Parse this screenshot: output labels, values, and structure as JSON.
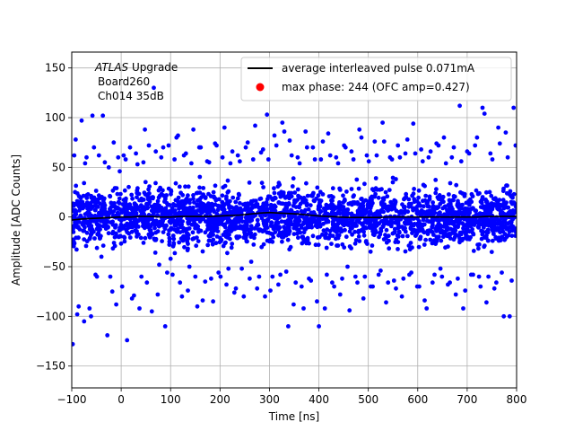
{
  "chart_data": {
    "type": "scatter",
    "title": "",
    "annotation": {
      "lines": [
        {
          "italic": "ATLAS",
          "rest": " Upgrade"
        },
        {
          "italic": "",
          "rest": "Board260"
        },
        {
          "italic": "",
          "rest": "Ch014 35dB"
        }
      ]
    },
    "xlabel": "Time [ns]",
    "ylabel": "Amplitude [ADC Counts]",
    "xlim": [
      -100,
      800
    ],
    "ylim": [
      -172,
      166
    ],
    "xticks": [
      -100,
      0,
      100,
      200,
      300,
      400,
      500,
      600,
      700,
      800
    ],
    "yticks": [
      -150,
      -100,
      -50,
      0,
      50,
      100,
      150
    ],
    "grid": true,
    "legend_position": "top-right",
    "series": [
      {
        "name": "average interleaved pulse 0.071mA",
        "kind": "line",
        "color": "#000000",
        "x": [
          -100,
          -80,
          -60,
          -40,
          -20,
          0,
          20,
          40,
          60,
          80,
          100,
          120,
          140,
          160,
          180,
          200,
          220,
          240,
          260,
          280,
          300,
          320,
          340,
          360,
          380,
          400,
          420,
          440,
          460,
          480,
          500,
          520,
          540,
          560,
          580,
          600,
          620,
          640,
          660,
          680,
          700,
          720,
          740,
          760,
          780,
          800
        ],
        "y": [
          -3,
          -2,
          -1.5,
          -1,
          -0.5,
          0,
          0,
          0.5,
          0.5,
          0,
          0,
          0.5,
          0.5,
          0.5,
          0.5,
          1,
          1.5,
          2,
          3,
          4,
          4.5,
          4,
          3.5,
          3,
          2,
          1,
          0.5,
          0,
          -0.5,
          -0.5,
          -0.5,
          -0.5,
          0,
          0,
          0,
          0,
          0,
          0,
          0,
          0,
          0,
          0,
          0.5,
          0.5,
          0.5,
          0.5
        ]
      },
      {
        "name": "max phase: 244 (OFC amp=0.427)",
        "kind": "scatter",
        "color": "#ff0000",
        "x": [],
        "y": []
      },
      {
        "name": "",
        "kind": "scatter",
        "color": "#0000ff",
        "x": [
          -98,
          -92,
          -89,
          -80,
          -75,
          -70,
          -61,
          -58,
          -52,
          -45,
          -40,
          -33,
          -28,
          -22,
          -15,
          -10,
          -3,
          5,
          12,
          18,
          26,
          33,
          41,
          48,
          56,
          62,
          70,
          77,
          85,
          93,
          100,
          108,
          115,
          123,
          131,
          138,
          146,
          154,
          161,
          170,
          178,
          186,
          193,
          201,
          209,
          217,
          225,
          232,
          240,
          248,
          256,
          263,
          271,
          279,
          287,
          295,
          302,
          310,
          318,
          326,
          334,
          341,
          349,
          357,
          365,
          373,
          380,
          388,
          396,
          404,
          412,
          419,
          427,
          435,
          443,
          451,
          458,
          466,
          474,
          482,
          490,
          497,
          505,
          513,
          521,
          529,
          536,
          544,
          552,
          560,
          568,
          575,
          583,
          591,
          599,
          607,
          614,
          622,
          630,
          638,
          646,
          653,
          661,
          669,
          677,
          685,
          692,
          700,
          708,
          716,
          724,
          731,
          739,
          747,
          755,
          763,
          770,
          778,
          786,
          794,
          -95,
          -86,
          -73,
          -64,
          -55,
          -49,
          -37,
          -25,
          -18,
          -6,
          2,
          9,
          22,
          30,
          37,
          45,
          52,
          66,
          74,
          81,
          89,
          96,
          104,
          112,
          119,
          127,
          135,
          142,
          150,
          158,
          165,
          174,
          182,
          190,
          197,
          205,
          213,
          221,
          229,
          236,
          244,
          252,
          260,
          267,
          275,
          283,
          291,
          298,
          306,
          314,
          322,
          330,
          338,
          345,
          353,
          361,
          369,
          376,
          384,
          392,
          400,
          408,
          416,
          423,
          431,
          439,
          447,
          454,
          462,
          470,
          478,
          486,
          493,
          501,
          509,
          517,
          525,
          532,
          540,
          548,
          556,
          564,
          571,
          579,
          587,
          595,
          603,
          610,
          618,
          626,
          634,
          642,
          649,
          657,
          665,
          673,
          681,
          688,
          696,
          704,
          712,
          720,
          727,
          735,
          743,
          751,
          759,
          766,
          774,
          782,
          790,
          798
        ],
        "y": [
          -128,
          78,
          -98,
          97,
          -105,
          60,
          -100,
          102,
          -58,
          62,
          -40,
          55,
          -119,
          -60,
          75,
          -88,
          46,
          62,
          -124,
          70,
          -79,
          53,
          -60,
          88,
          72,
          -95,
          66,
          -48,
          70,
          -56,
          -42,
          58,
          82,
          -80,
          64,
          -50,
          88,
          -90,
          70,
          -65,
          55,
          -85,
          72,
          -60,
          90,
          -52,
          66,
          -72,
          56,
          -80,
          75,
          -45,
          92,
          -60,
          68,
          103,
          -74,
          82,
          -68,
          95,
          -55,
          77,
          -88,
          60,
          -70,
          86,
          -62,
          70,
          -85,
          58,
          -92,
          84,
          -66,
          60,
          -78,
          72,
          -50,
          66,
          -60,
          88,
          -82,
          62,
          -70,
          76,
          -58,
          95,
          -86,
          60,
          -64,
          72,
          -80,
          64,
          -58,
          94,
          -70,
          68,
          -84,
          60,
          -66,
          74,
          -52,
          80,
          -68,
          60,
          -78,
          112,
          -92,
          66,
          -58,
          72,
          -60,
          110,
          -86,
          64,
          -72,
          90,
          -56,
          85,
          -100,
          110,
          62,
          -90,
          54,
          -92,
          70,
          -60,
          102,
          50,
          -75,
          60,
          -70,
          58,
          -82,
          64,
          -92,
          55,
          -66,
          130,
          -78,
          60,
          -110,
          72,
          -58,
          80,
          -66,
          62,
          -74,
          54,
          -60,
          70,
          -84,
          56,
          -62,
          74,
          -56,
          60,
          -68,
          54,
          -76,
          62,
          -52,
          70,
          -62,
          58,
          -72,
          65,
          -80,
          58,
          -60,
          72,
          -58,
          86,
          -110,
          62,
          -66,
          54,
          -92,
          70,
          -64,
          58,
          -110,
          76,
          -58,
          62,
          -70,
          54,
          -62,
          70,
          -94,
          58,
          -66,
          80,
          -60,
          56,
          -70,
          62,
          -54,
          76,
          -66,
          58,
          -72,
          60,
          -62,
          78,
          -56,
          64,
          -70,
          56,
          -92,
          66,
          -58,
          72,
          -60,
          54,
          -66,
          70,
          -62,
          56,
          -74,
          64,
          -58,
          80,
          -70,
          104,
          -60,
          58,
          -66,
          74,
          -100,
          60,
          -64,
          72
        ]
      }
    ]
  }
}
